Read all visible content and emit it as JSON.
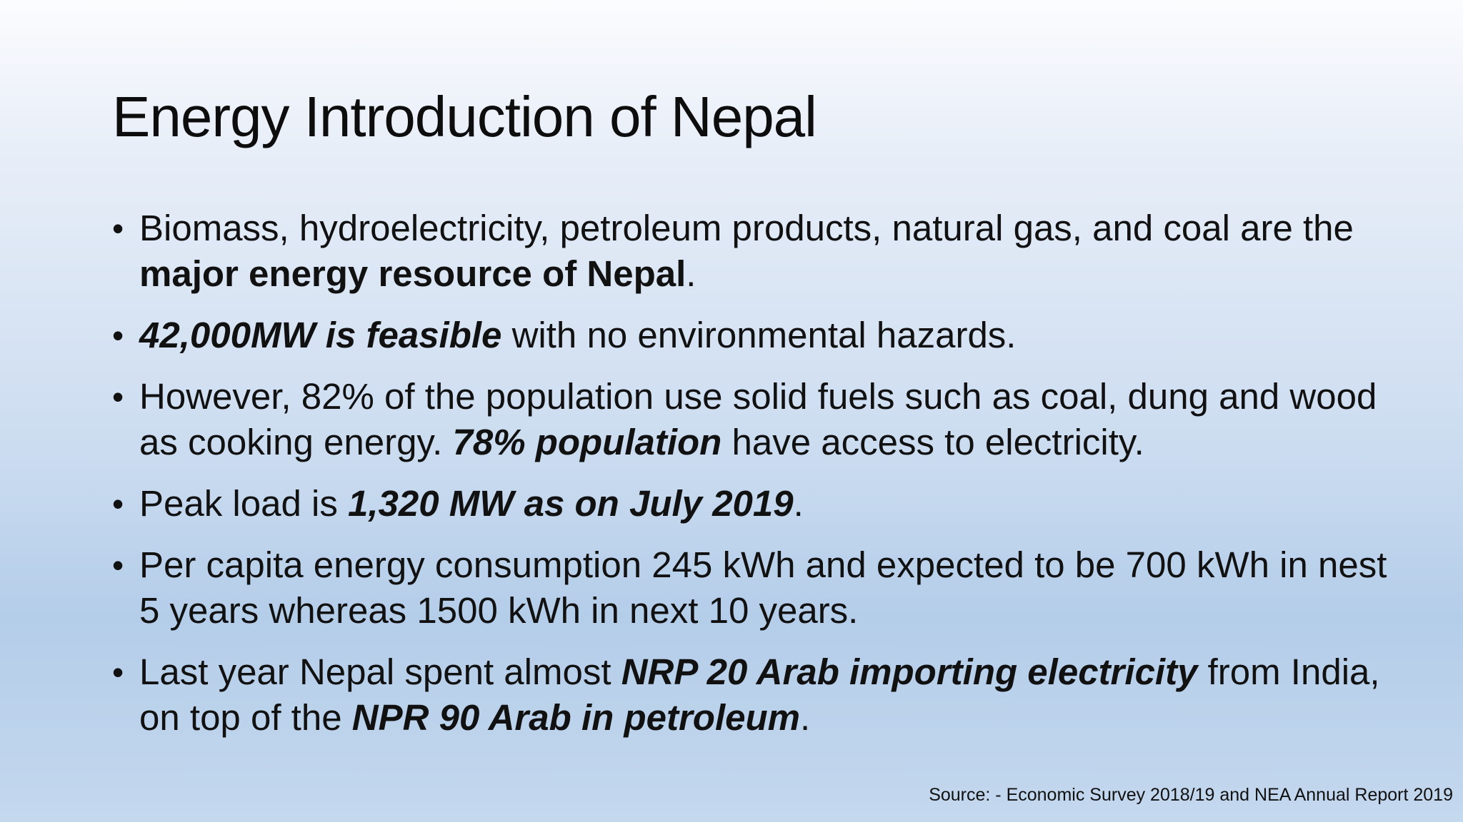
{
  "slide": {
    "title": "Energy Introduction of Nepal",
    "bullet_symbol": "•",
    "bullets": [
      {
        "t1": "Biomass, hydroelectricity, petroleum products, natural gas, and coal are the ",
        "b1": "major energy resource of Nepal",
        "t2": "."
      },
      {
        "bi1": "42,000MW is feasible",
        "t1": " with no environmental hazards."
      },
      {
        "t1": "However, 82% of the population use solid fuels such as coal, dung and wood as cooking energy. ",
        "bi1": "78% population",
        "t2": " have access to electricity."
      },
      {
        "t1": "Peak load is ",
        "bi1": "1,320 MW as on July 2019",
        "t2": "."
      },
      {
        "t1": "Per capita energy consumption 245 kWh and expected to be 700 kWh in nest 5 years whereas 1500 kWh in next 10 years."
      },
      {
        "t1": "Last year Nepal spent almost ",
        "bi1": "NRP 20 Arab importing electricity",
        "t2": " from India, on top of the ",
        "bi2": "NPR 90 Arab in petroleum",
        "t3": "."
      }
    ],
    "source": "Source: - Economic Survey 2018/19 and NEA Annual Report 2019"
  }
}
